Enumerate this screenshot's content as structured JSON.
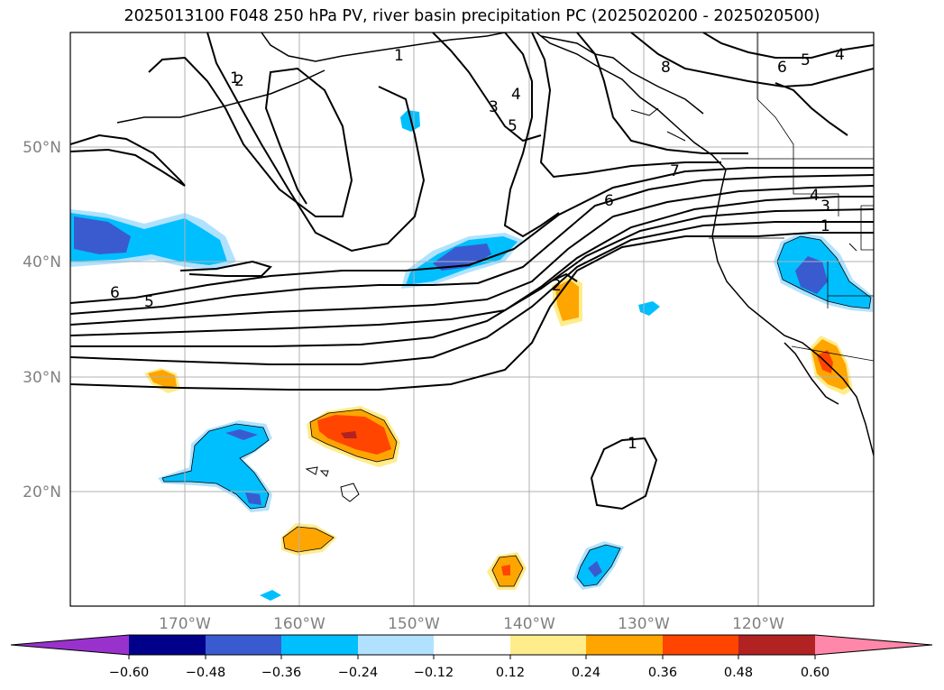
{
  "title": "2025013100 F048 250 hPa PV, river basin precipitation PC (2025020200 - 2025020500)",
  "lat_labels": [
    "50°N",
    "40°N",
    "30°N",
    "20°N"
  ],
  "lon_labels": [
    "170°W",
    "160°W",
    "150°W",
    "140°W",
    "130°W",
    "120°W"
  ],
  "contour_labels": [
    "1",
    "2",
    "1",
    "3",
    "4",
    "5",
    "8",
    "6",
    "5",
    "4",
    "7",
    "6",
    "4",
    "3",
    "1",
    "6",
    "5",
    "2",
    "1"
  ],
  "colorbar": {
    "ticks": [
      "−0.60",
      "−0.48",
      "−0.36",
      "−0.24",
      "−0.12",
      "0.12",
      "0.24",
      "0.36",
      "0.48",
      "0.60"
    ],
    "colors": [
      "#9932cc",
      "#00008b",
      "#3a5bcf",
      "#00bfff",
      "#b0e2ff",
      "#ffffff",
      "#ffec8b",
      "#ffa500",
      "#ff4500",
      "#b22222",
      "#ff88aa"
    ]
  },
  "colors": {
    "neg_weak": "#b0e2ff",
    "neg_mod": "#00bfff",
    "neg_strong": "#3a5bcf",
    "neg_max": "#00008b",
    "pos_weak": "#ffec8b",
    "pos_mod": "#ffa500",
    "pos_strong": "#ff4500",
    "pos_max": "#b22222",
    "grid": "#b0b0b0"
  }
}
